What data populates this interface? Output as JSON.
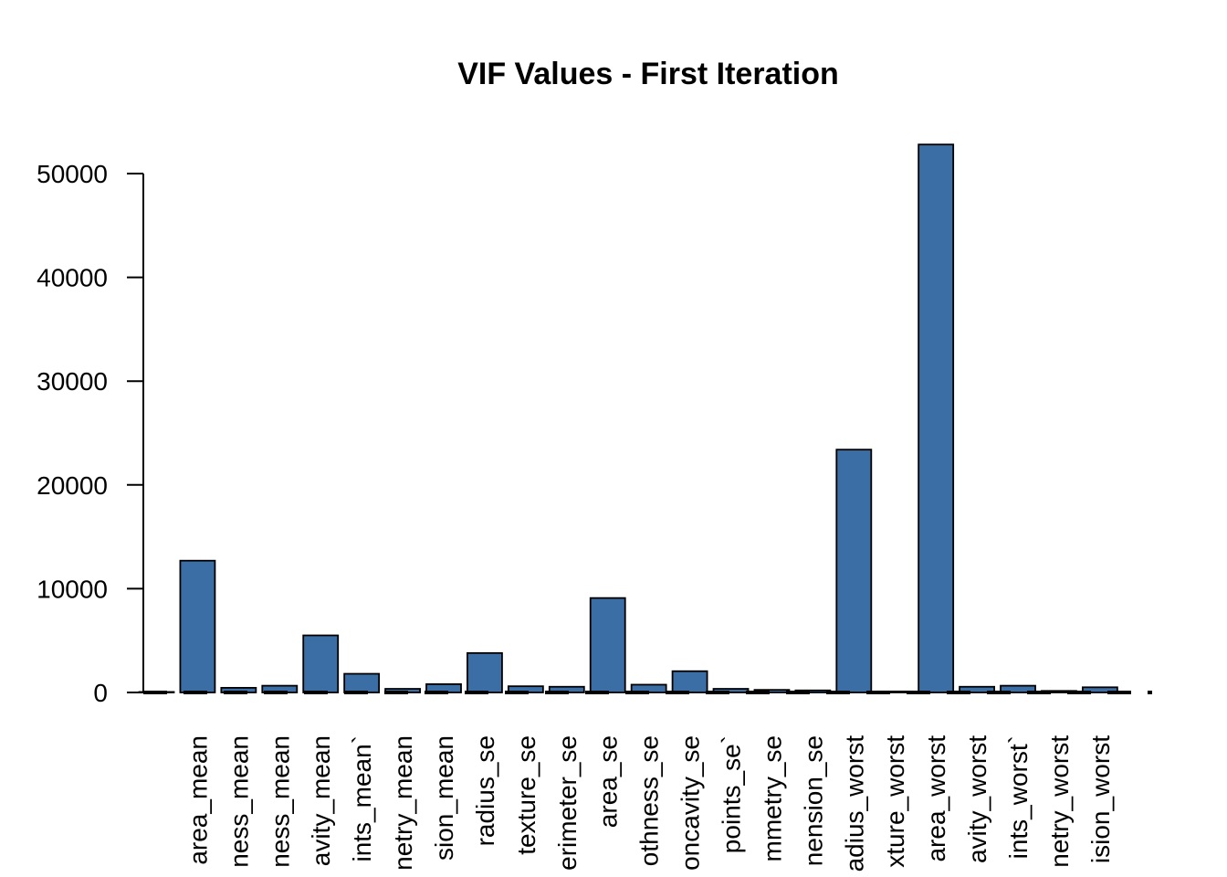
{
  "chart_data": {
    "type": "bar",
    "title": "VIF Values - First Iteration",
    "xlabel": "",
    "ylabel": "",
    "ylim": [
      0,
      52800
    ],
    "yticks": [
      0,
      10000,
      20000,
      30000,
      40000,
      50000
    ],
    "bar_color": "#3A6EA5",
    "threshold_line": {
      "value": 5,
      "style": "dashed",
      "color": "#000000"
    },
    "categories": [
      "",
      "area_mean",
      "ness_mean",
      "ness_mean",
      "avity_mean",
      "ints_mean`",
      "netry_mean",
      "sion_mean",
      "radius_se",
      "texture_se",
      "erimeter_se",
      "area_se",
      "othness_se",
      "oncavity_se",
      "points_se`",
      "mmetry_se",
      "nension_se",
      "adius_worst",
      "xture_worst",
      "area_worst",
      "avity_worst",
      "ints_worst`",
      "netry_worst",
      "ision_worst"
    ],
    "values": [
      50,
      12700,
      450,
      650,
      5500,
      1800,
      350,
      800,
      3800,
      600,
      550,
      9100,
      750,
      2050,
      350,
      250,
      200,
      23400,
      100,
      52800,
      550,
      650,
      150,
      500
    ]
  }
}
